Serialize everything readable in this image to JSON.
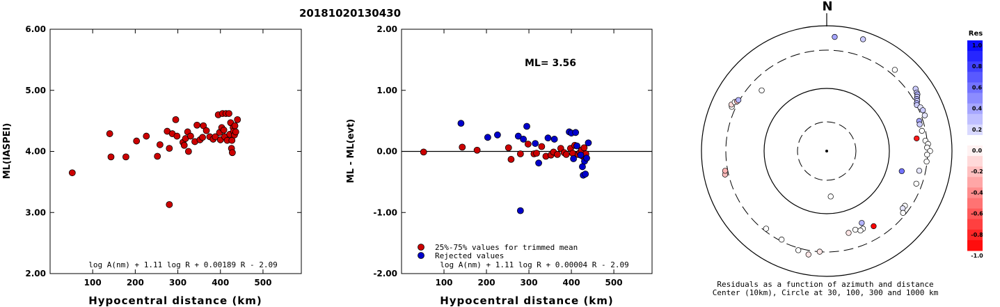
{
  "title": "20181020130430",
  "colors": {
    "red": "#cc0000",
    "blue": "#0000cc",
    "axis": "#000000"
  },
  "chart_data": [
    {
      "type": "scatter",
      "xlabel": "Hypocentral distance (km)",
      "ylabel": "ML(IASPEI)",
      "xlim": [
        0,
        590
      ],
      "ylim": [
        2.0,
        6.0
      ],
      "xticks": [
        "100",
        "200",
        "300",
        "400",
        "500"
      ],
      "yticks": [
        "2.00",
        "3.00",
        "4.00",
        "5.00",
        "6.00"
      ],
      "formula": "log A(nm) + 1.11 log R + 0.00189 R - 2.09",
      "series": [
        {
          "color": "red",
          "points": [
            [
              52,
              3.65
            ],
            [
              140,
              4.29
            ],
            [
              143,
              3.91
            ],
            [
              178,
              3.91
            ],
            [
              203,
              4.17
            ],
            [
              226,
              4.25
            ],
            [
              252,
              3.92
            ],
            [
              258,
              4.11
            ],
            [
              275,
              4.33
            ],
            [
              280,
              4.05
            ],
            [
              280,
              3.13
            ],
            [
              287,
              4.29
            ],
            [
              295,
              4.52
            ],
            [
              298,
              4.25
            ],
            [
              312,
              4.15
            ],
            [
              315,
              4.1
            ],
            [
              318,
              4.21
            ],
            [
              323,
              4.32
            ],
            [
              325,
              4.0
            ],
            [
              330,
              4.25
            ],
            [
              340,
              4.16
            ],
            [
              345,
              4.43
            ],
            [
              352,
              4.19
            ],
            [
              358,
              4.23
            ],
            [
              360,
              4.42
            ],
            [
              367,
              4.34
            ],
            [
              375,
              4.24
            ],
            [
              383,
              4.2
            ],
            [
              388,
              4.24
            ],
            [
              395,
              4.6
            ],
            [
              398,
              4.31
            ],
            [
              400,
              4.19
            ],
            [
              403,
              4.39
            ],
            [
              405,
              4.62
            ],
            [
              408,
              4.35
            ],
            [
              410,
              4.24
            ],
            [
              413,
              4.62
            ],
            [
              416,
              4.18
            ],
            [
              420,
              4.62
            ],
            [
              422,
              4.28
            ],
            [
              424,
              4.47
            ],
            [
              426,
              4.05
            ],
            [
              427,
              4.18
            ],
            [
              428,
              3.98
            ],
            [
              430,
              4.39
            ],
            [
              431,
              4.33
            ],
            [
              433,
              4.27
            ],
            [
              434,
              4.42
            ],
            [
              436,
              4.32
            ],
            [
              440,
              4.52
            ]
          ]
        }
      ]
    },
    {
      "type": "scatter",
      "xlabel": "Hypocentral distance (km)",
      "ylabel": "ML - ML(evt)",
      "xlim": [
        0,
        590
      ],
      "ylim": [
        -2.0,
        2.0
      ],
      "xticks": [
        "100",
        "200",
        "300",
        "400",
        "500"
      ],
      "yticks": [
        "-2.00",
        "-1.00",
        "0.00",
        "1.00",
        "2.00"
      ],
      "annotation": "ML= 3.56",
      "legend": [
        "25%-75% values for trimmed mean",
        "Rejected values"
      ],
      "formula": "log A(nm) + 1.11 log R + 0.00004 R - 2.09",
      "series": [
        {
          "color": "red",
          "points": [
            [
              52,
              -0.01
            ],
            [
              143,
              0.07
            ],
            [
              178,
              0.02
            ],
            [
              252,
              0.06
            ],
            [
              258,
              -0.13
            ],
            [
              280,
              -0.04
            ],
            [
              298,
              0.12
            ],
            [
              312,
              -0.04
            ],
            [
              318,
              -0.03
            ],
            [
              330,
              0.08
            ],
            [
              340,
              -0.08
            ],
            [
              352,
              -0.06
            ],
            [
              358,
              -0.01
            ],
            [
              367,
              -0.05
            ],
            [
              375,
              0.05
            ],
            [
              383,
              -0.02
            ],
            [
              388,
              -0.05
            ],
            [
              398,
              0.05
            ],
            [
              403,
              -0.03
            ],
            [
              408,
              0.1
            ],
            [
              416,
              -0.05
            ],
            [
              420,
              -0.02
            ],
            [
              424,
              0.02
            ],
            [
              427,
              -0.08
            ],
            [
              430,
              0.06
            ],
            [
              434,
              -0.04
            ]
          ]
        },
        {
          "color": "blue",
          "points": [
            [
              140,
              0.46
            ],
            [
              203,
              0.23
            ],
            [
              226,
              0.27
            ],
            [
              275,
              0.25
            ],
            [
              280,
              -0.97
            ],
            [
              287,
              0.2
            ],
            [
              295,
              0.41
            ],
            [
              315,
              0.13
            ],
            [
              323,
              -0.19
            ],
            [
              345,
              0.22
            ],
            [
              360,
              0.2
            ],
            [
              395,
              0.32
            ],
            [
              400,
              0.3
            ],
            [
              405,
              -0.12
            ],
            [
              410,
              0.31
            ],
            [
              413,
              0.09
            ],
            [
              422,
              -0.06
            ],
            [
              426,
              -0.25
            ],
            [
              428,
              -0.39
            ],
            [
              431,
              -0.16
            ],
            [
              433,
              -0.37
            ],
            [
              436,
              -0.11
            ],
            [
              440,
              0.14
            ]
          ]
        }
      ]
    },
    {
      "type": "polar-scatter",
      "north_label": "N",
      "caption_line1": "Residuals as a function of azimuth and distance",
      "caption_line2": "Center (10km), Circle at 30, 100, 300 and 1000 km",
      "colorbar_title": "Res",
      "colorbar_ticks": [
        "1.0",
        "0.8",
        "0.6",
        "0.4",
        "0.2",
        "0.0",
        "-0.2",
        "-0.4",
        "-0.6",
        "-0.8",
        "-1.0"
      ],
      "stations": [
        {
          "az": 4,
          "r": 0.913,
          "res": 0.35
        },
        {
          "az": 18,
          "r": 0.938,
          "res": 0.2
        },
        {
          "az": 40,
          "r": 0.846,
          "res": 0.0
        },
        {
          "az": 55,
          "r": 0.866,
          "res": 0.2
        },
        {
          "az": 57,
          "r": 0.857,
          "res": 0.2
        },
        {
          "az": 58,
          "r": 0.854,
          "res": 0.3
        },
        {
          "az": 59,
          "r": 0.842,
          "res": 0.2
        },
        {
          "az": 60,
          "r": 0.831,
          "res": 0.3
        },
        {
          "az": 61,
          "r": 0.826,
          "res": 0.2
        },
        {
          "az": 62,
          "r": 0.814,
          "res": 0.3
        },
        {
          "az": 63,
          "r": 0.808,
          "res": 0.2
        },
        {
          "az": 65,
          "r": 0.825,
          "res": 0.1
        },
        {
          "az": 67,
          "r": 0.834,
          "res": 0.2
        },
        {
          "az": 70,
          "r": 0.833,
          "res": 0.1
        },
        {
          "az": 72,
          "r": 0.776,
          "res": 0.35
        },
        {
          "az": 74,
          "r": 0.772,
          "res": 0.2
        },
        {
          "az": 78,
          "r": 0.777,
          "res": 0.0
        },
        {
          "az": 82,
          "r": 0.725,
          "res": -0.9
        },
        {
          "az": 84,
          "r": 0.792,
          "res": 0.0
        },
        {
          "az": 86,
          "r": 0.811,
          "res": 0.0
        },
        {
          "az": 88,
          "r": 0.802,
          "res": 0.0
        },
        {
          "az": 90,
          "r": 0.825,
          "res": 0.0
        },
        {
          "az": 92,
          "r": 0.802,
          "res": 0.0
        },
        {
          "az": 96,
          "r": 0.802,
          "res": 0.0
        },
        {
          "az": 102,
          "r": 0.755,
          "res": 0.1
        },
        {
          "az": 105,
          "r": 0.62,
          "res": 0.55
        },
        {
          "az": 110,
          "r": 0.761,
          "res": 0.0
        },
        {
          "az": 125,
          "r": 0.762,
          "res": 0.0
        },
        {
          "az": 127,
          "r": 0.76,
          "res": 0.1
        },
        {
          "az": 129,
          "r": 0.784,
          "res": 0.0
        },
        {
          "az": 148,
          "r": 0.707,
          "res": -1.0
        },
        {
          "az": 154,
          "r": 0.638,
          "res": 0.3
        },
        {
          "az": 155,
          "r": 0.684,
          "res": 0.0
        },
        {
          "az": 157,
          "r": 0.689,
          "res": 0.0
        },
        {
          "az": 160,
          "r": 0.668,
          "res": 0.0
        },
        {
          "az": 165,
          "r": 0.676,
          "res": -0.1
        },
        {
          "az": 175,
          "r": 0.364,
          "res": 0.0
        },
        {
          "az": 184,
          "r": 0.805,
          "res": -0.1
        },
        {
          "az": 190,
          "r": 0.838,
          "res": -0.1
        },
        {
          "az": 196,
          "r": 0.823,
          "res": 0.0
        },
        {
          "az": 207,
          "r": 0.793,
          "res": 0.0
        },
        {
          "az": 218,
          "r": 0.786,
          "res": 0.0
        },
        {
          "az": 257,
          "r": 0.833,
          "res": -0.25
        },
        {
          "az": 259,
          "r": 0.826,
          "res": -0.3
        },
        {
          "az": 295,
          "r": 0.836,
          "res": 0.0
        },
        {
          "az": 296,
          "r": 0.846,
          "res": -0.15
        },
        {
          "az": 298,
          "r": 0.832,
          "res": 0.0
        },
        {
          "az": 299,
          "r": 0.818,
          "res": -0.25
        },
        {
          "az": 300,
          "r": 0.814,
          "res": 0.3
        },
        {
          "az": 313,
          "r": 0.71,
          "res": 0.0
        }
      ]
    }
  ]
}
